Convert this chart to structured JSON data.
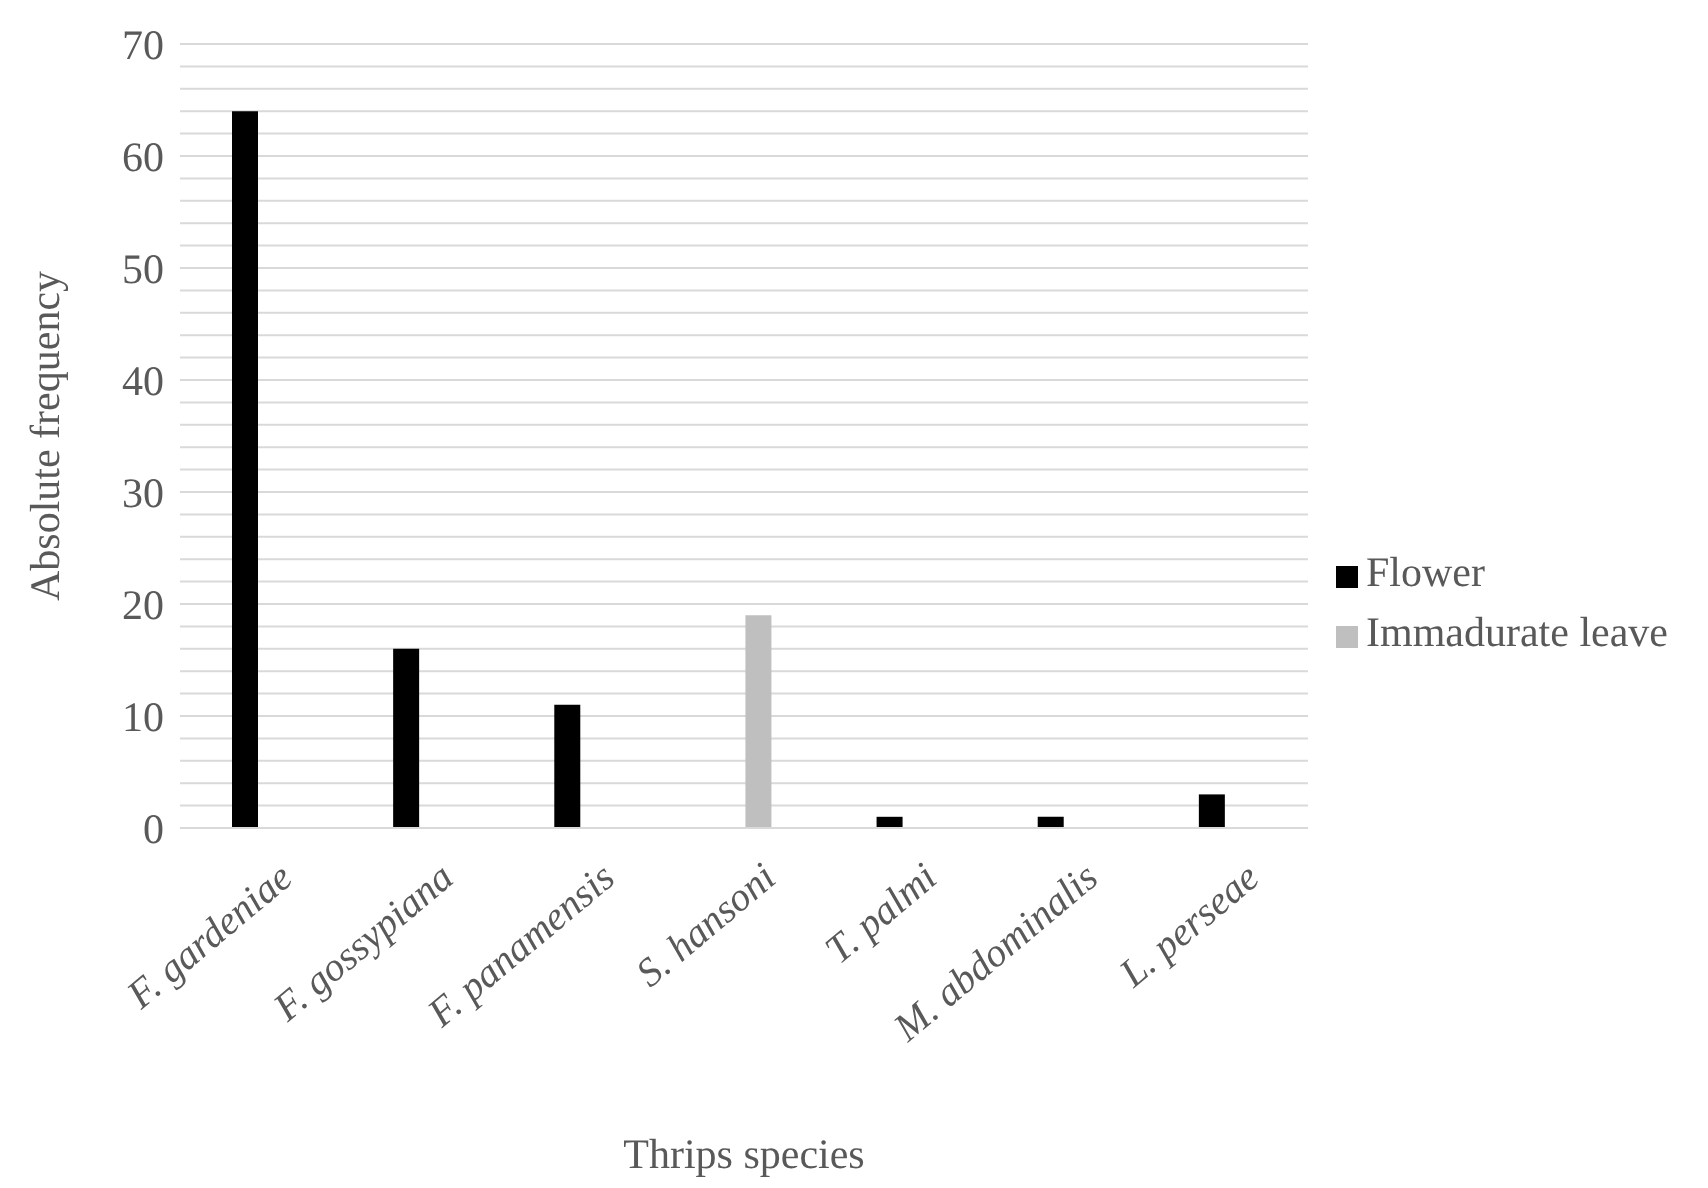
{
  "chart_data": {
    "type": "bar",
    "xlabel": "Thrips species",
    "ylabel": "Absolute frequency",
    "categories": [
      "F. gardeniae",
      "F. gossypiana",
      "F. panamensis",
      "S. hansoni",
      "T. palmi",
      "M. abdominalis",
      "L. perseae"
    ],
    "series": [
      {
        "name": "Flower",
        "color": "#000000",
        "values": [
          64,
          16,
          11,
          null,
          1,
          1,
          3
        ]
      },
      {
        "name": "Immadurate leave",
        "color": "#bfbfbf",
        "values": [
          null,
          null,
          null,
          19,
          null,
          null,
          null
        ]
      }
    ],
    "ylim": [
      0,
      70
    ],
    "yticks": [
      0,
      {
        "value": 2,
        "label": null
      },
      {
        "value": 4,
        "label": null
      },
      {
        "value": 6,
        "label": null
      },
      {
        "value": 8,
        "label": null
      },
      10,
      {
        "value": 12,
        "label": null
      },
      {
        "value": 14,
        "label": null
      },
      {
        "value": 16,
        "label": null
      },
      {
        "value": 18,
        "label": null
      },
      20,
      {
        "value": 22,
        "label": null
      },
      {
        "value": 24,
        "label": null
      },
      {
        "value": 26,
        "label": null
      },
      {
        "value": 28,
        "label": null
      },
      30,
      {
        "value": 32,
        "label": null
      },
      {
        "value": 34,
        "label": null
      },
      {
        "value": 36,
        "label": null
      },
      {
        "value": 38,
        "label": null
      },
      40,
      {
        "value": 42,
        "label": null
      },
      {
        "value": 44,
        "label": null
      },
      {
        "value": 46,
        "label": null
      },
      {
        "value": 48,
        "label": null
      },
      50,
      {
        "value": 52,
        "label": null
      },
      {
        "value": 54,
        "label": null
      },
      {
        "value": 56,
        "label": null
      },
      {
        "value": 58,
        "label": null
      },
      60,
      {
        "value": 62,
        "label": null
      },
      {
        "value": 64,
        "label": null
      },
      {
        "value": 66,
        "label": null
      },
      {
        "value": 68,
        "label": null
      },
      70
    ],
    "grid": "y",
    "legend": "right"
  }
}
